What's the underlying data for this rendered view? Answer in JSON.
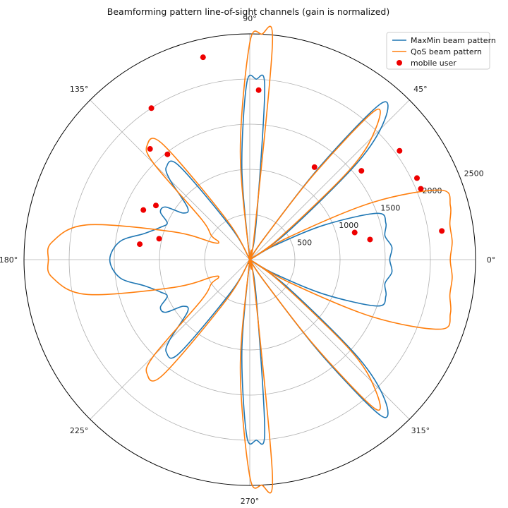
{
  "chart_data": {
    "type": "polar",
    "title": "Beamforming pattern line-of-sight channels (gain is normalized)",
    "r_ticks": [
      500,
      1000,
      1500,
      2000,
      2500
    ],
    "r_max": 2500,
    "theta_ticks_deg": [
      0,
      45,
      90,
      135,
      180,
      225,
      270,
      315
    ],
    "theta_tick_labels": [
      "0°",
      "45°",
      "90°",
      "135°",
      "180°",
      "225°",
      "270°",
      "315°"
    ],
    "grid": true,
    "legend_position": "top-right",
    "series": [
      {
        "name": "MaxMin beam pattern",
        "color": "#1f77b4",
        "symmetric_about_horizontal": true,
        "points": [
          [
            0,
            1550
          ],
          [
            5,
            1580
          ],
          [
            10,
            1520
          ],
          [
            15,
            1560
          ],
          [
            20,
            1500
          ],
          [
            25,
            900
          ],
          [
            30,
            300
          ],
          [
            33,
            0
          ],
          [
            36,
            500
          ],
          [
            42,
            1600
          ],
          [
            46,
            2150
          ],
          [
            50,
            2250
          ],
          [
            53,
            1300
          ],
          [
            56,
            300
          ],
          [
            60,
            0
          ],
          [
            70,
            0
          ],
          [
            80,
            400
          ],
          [
            85,
            1900
          ],
          [
            88,
            2000
          ],
          [
            91,
            1950
          ],
          [
            95,
            1000
          ],
          [
            100,
            0
          ],
          [
            110,
            0
          ],
          [
            120,
            400
          ],
          [
            127,
            1300
          ],
          [
            132,
            1380
          ],
          [
            135,
            1250
          ],
          [
            140,
            900
          ],
          [
            145,
            900
          ],
          [
            148,
            1100
          ],
          [
            152,
            1120
          ],
          [
            156,
            1000
          ],
          [
            160,
            1050
          ],
          [
            166,
            1200
          ],
          [
            172,
            1450
          ],
          [
            180,
            1550
          ]
        ]
      },
      {
        "name": "QoS beam pattern",
        "color": "#ff7f0e",
        "symmetric_about_horizontal": true,
        "points": [
          [
            0,
            2220
          ],
          [
            5,
            2250
          ],
          [
            10,
            2250
          ],
          [
            15,
            2300
          ],
          [
            20,
            2250
          ],
          [
            25,
            1500
          ],
          [
            30,
            500
          ],
          [
            33,
            0
          ],
          [
            36,
            400
          ],
          [
            42,
            1500
          ],
          [
            46,
            2000
          ],
          [
            50,
            2150
          ],
          [
            53,
            1200
          ],
          [
            56,
            300
          ],
          [
            60,
            0
          ],
          [
            70,
            0
          ],
          [
            80,
            300
          ],
          [
            84,
            2400
          ],
          [
            87,
            2500
          ],
          [
            90,
            2400
          ],
          [
            95,
            1200
          ],
          [
            100,
            0
          ],
          [
            110,
            0
          ],
          [
            120,
            500
          ],
          [
            127,
            1600
          ],
          [
            132,
            1700
          ],
          [
            135,
            1500
          ],
          [
            140,
            700
          ],
          [
            148,
            500
          ],
          [
            150,
            400
          ],
          [
            155,
            450
          ],
          [
            160,
            900
          ],
          [
            168,
            1850
          ],
          [
            175,
            2200
          ],
          [
            180,
            2230
          ]
        ]
      }
    ],
    "scatter": {
      "name": "mobile user",
      "color": "#ee0000",
      "points": [
        [
          8.5,
          2150
        ],
        [
          9.5,
          1350
        ],
        [
          14.5,
          1200
        ],
        [
          22.5,
          2050
        ],
        [
          26,
          2060
        ],
        [
          36,
          2050
        ],
        [
          38.5,
          1580
        ],
        [
          55,
          1250
        ],
        [
          87,
          1880
        ],
        [
          103,
          2300
        ],
        [
          123,
          2000
        ],
        [
          128,
          1480
        ],
        [
          132,
          1650
        ],
        [
          150,
          1200
        ],
        [
          155,
          1300
        ],
        [
          167,
          1030
        ],
        [
          172,
          1230
        ]
      ]
    }
  }
}
